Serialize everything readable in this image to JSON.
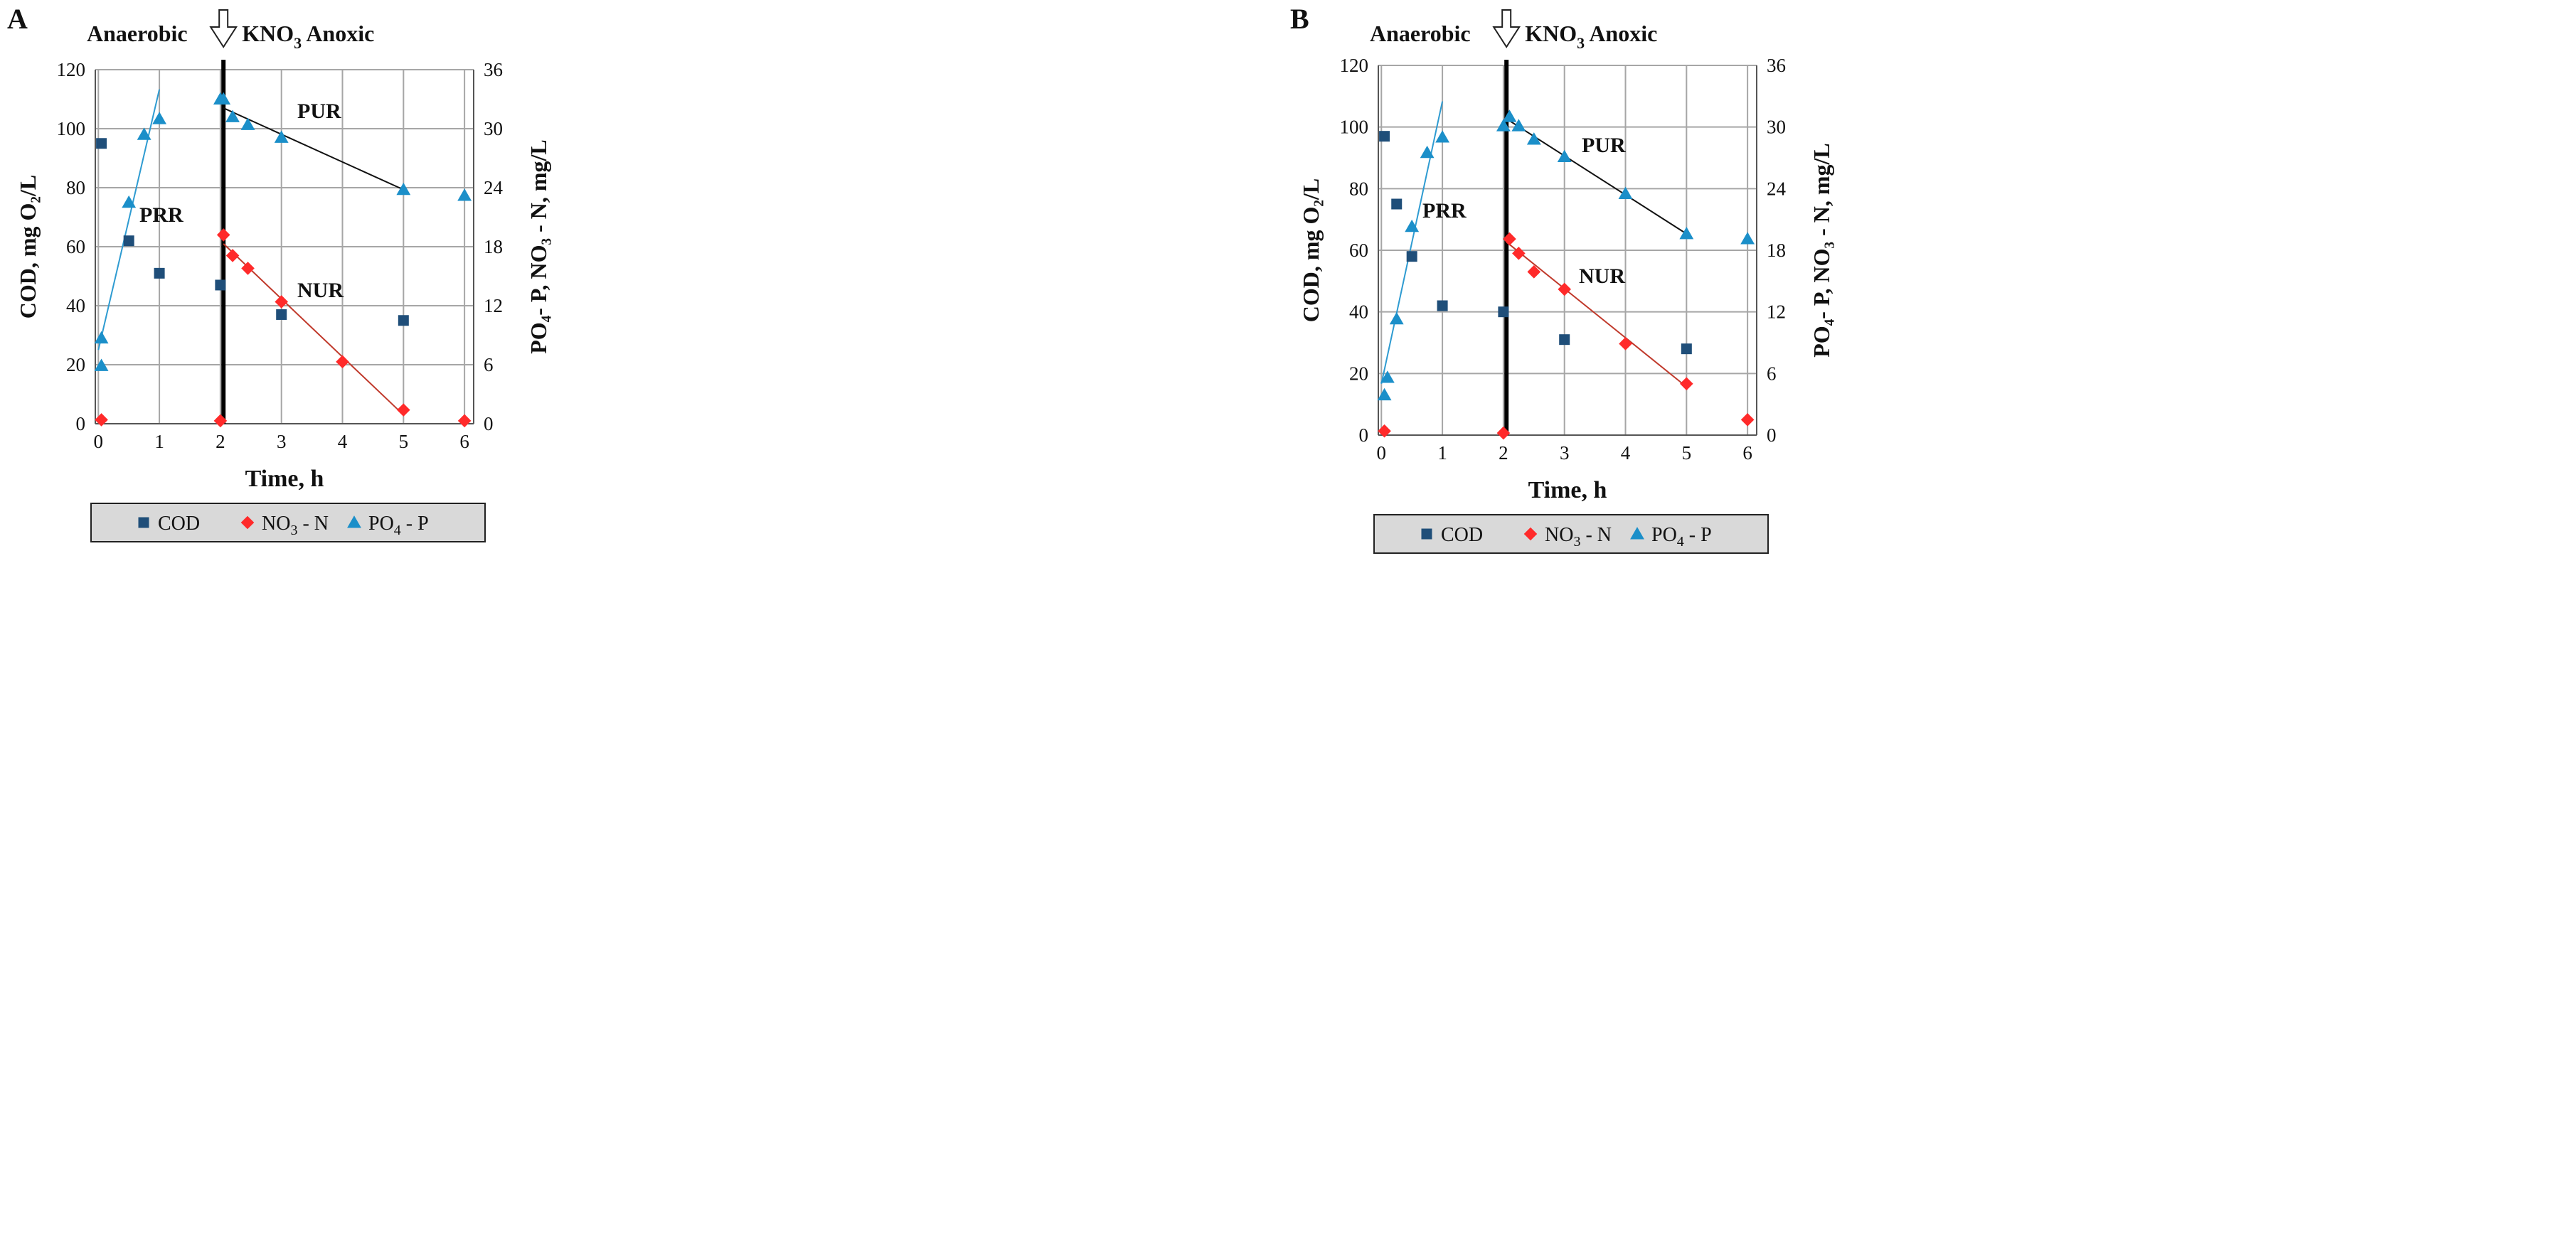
{
  "colors": {
    "cod": "#1f4e79",
    "no3": "#ff2a2a",
    "po4": "#1b8fc9",
    "no3_line": "#c0392b",
    "po4_line": "#2e9bd1",
    "pur_line": "#111111",
    "grid": "#a6a6a6",
    "legend_bg": "#d9d9d9"
  },
  "chart_data": [
    {
      "panel_label": "A",
      "type": "scatter",
      "annotations": {
        "anaerobic": "Anaerobic",
        "kno3": "KNO",
        "kno3_sub": "3",
        "anoxic": "Anoxic",
        "prr": "PRR",
        "pur": "PUR",
        "nur": "NUR"
      },
      "divider_x": 2.05,
      "xlabel": "Time, h",
      "ylabel_left": "COD, mg O₂/L",
      "ylabel_right": "PO₄- P, NO₃ - N, mg/L",
      "xlim": [
        -0.05,
        6.15
      ],
      "xticks": [
        0,
        1,
        2,
        3,
        4,
        5,
        6
      ],
      "ylim_left": [
        0,
        120
      ],
      "yticks_left": [
        0,
        20,
        40,
        60,
        80,
        100,
        120
      ],
      "ylim_right": [
        0,
        36
      ],
      "yticks_right": [
        0,
        6,
        12,
        18,
        24,
        30,
        36
      ],
      "series": [
        {
          "name": "COD",
          "axis": "left",
          "marker": "square",
          "x": [
            0.05,
            0.5,
            1.0,
            2.0,
            3.0,
            5.0
          ],
          "y": [
            95,
            62,
            51,
            47,
            37,
            35
          ]
        },
        {
          "name": "NO3-N",
          "axis": "right",
          "marker": "diamond",
          "x": [
            0.05,
            2.0,
            2.05,
            2.2,
            2.45,
            3.0,
            4.0,
            5.0,
            6.0
          ],
          "y": [
            0.4,
            0.3,
            19.2,
            17.1,
            15.8,
            12.4,
            6.3,
            1.4,
            0.3
          ]
        },
        {
          "name": "PO4-P",
          "axis": "right",
          "marker": "triangle",
          "x": [
            0.05,
            0.05,
            0.5,
            0.75,
            1.0,
            2.0,
            2.05,
            2.2,
            2.45,
            3.0,
            5.0,
            6.0
          ],
          "y": [
            5.9,
            8.7,
            22.5,
            29.4,
            31.0,
            33.0,
            33.0,
            31.2,
            30.4,
            29.1,
            23.8,
            23.2
          ]
        }
      ],
      "trendlines": [
        {
          "name": "PRR",
          "axis": "right",
          "x": [
            0.0,
            1.0
          ],
          "y": [
            7.5,
            34.0
          ]
        },
        {
          "name": "PUR",
          "axis": "right",
          "x": [
            2.05,
            5.0
          ],
          "y": [
            32.1,
            23.8
          ]
        },
        {
          "name": "NUR",
          "axis": "right",
          "x": [
            2.05,
            5.0
          ],
          "y": [
            18.3,
            0.9
          ]
        }
      ],
      "legend": [
        "COD",
        "NO3 - N",
        "PO4 - P"
      ]
    },
    {
      "panel_label": "B",
      "type": "scatter",
      "annotations": {
        "anaerobic": "Anaerobic",
        "kno3": "KNO",
        "kno3_sub": "3",
        "anoxic": "Anoxic",
        "prr": "PRR",
        "pur": "PUR",
        "nur": "NUR"
      },
      "divider_x": 2.05,
      "xlabel": "Time, h",
      "ylabel_left": "COD, mg O₂/L",
      "ylabel_right": "PO₄- P, NO₃ - N, mg/L",
      "xlim": [
        -0.05,
        6.15
      ],
      "xticks": [
        0,
        1,
        2,
        3,
        4,
        5,
        6
      ],
      "ylim_left": [
        0,
        120
      ],
      "yticks_left": [
        0,
        20,
        40,
        60,
        80,
        100,
        120
      ],
      "ylim_right": [
        0,
        36
      ],
      "yticks_right": [
        0,
        6,
        12,
        18,
        24,
        30,
        36
      ],
      "series": [
        {
          "name": "COD",
          "axis": "left",
          "marker": "square",
          "x": [
            0.05,
            0.25,
            0.5,
            1.0,
            2.0,
            3.0,
            5.0
          ],
          "y": [
            97,
            75,
            58,
            42,
            40,
            31,
            28
          ]
        },
        {
          "name": "NO3-N",
          "axis": "right",
          "marker": "diamond",
          "x": [
            0.05,
            2.0,
            2.1,
            2.25,
            2.5,
            3.0,
            4.0,
            5.0,
            6.0
          ],
          "y": [
            0.4,
            0.2,
            19.1,
            17.7,
            15.9,
            14.2,
            8.9,
            5.0,
            1.5
          ]
        },
        {
          "name": "PO4-P",
          "axis": "right",
          "marker": "triangle",
          "x": [
            0.05,
            0.1,
            0.25,
            0.5,
            0.75,
            1.0,
            2.0,
            2.1,
            2.25,
            2.5,
            3.0,
            4.0,
            5.0,
            6.0
          ],
          "y": [
            3.9,
            5.6,
            11.3,
            20.3,
            27.5,
            29.0,
            30.1,
            31.0,
            30.1,
            28.8,
            27.1,
            23.5,
            19.6,
            19.1
          ]
        }
      ],
      "trendlines": [
        {
          "name": "PRR",
          "axis": "right",
          "x": [
            0.0,
            1.0
          ],
          "y": [
            5.0,
            32.5
          ]
        },
        {
          "name": "PUR",
          "axis": "right",
          "x": [
            2.05,
            5.0
          ],
          "y": [
            30.8,
            19.6
          ]
        },
        {
          "name": "NUR",
          "axis": "right",
          "x": [
            2.05,
            5.0
          ],
          "y": [
            18.8,
            4.7
          ]
        }
      ],
      "legend": [
        "COD",
        "NO3 - N",
        "PO4 - P"
      ]
    }
  ]
}
